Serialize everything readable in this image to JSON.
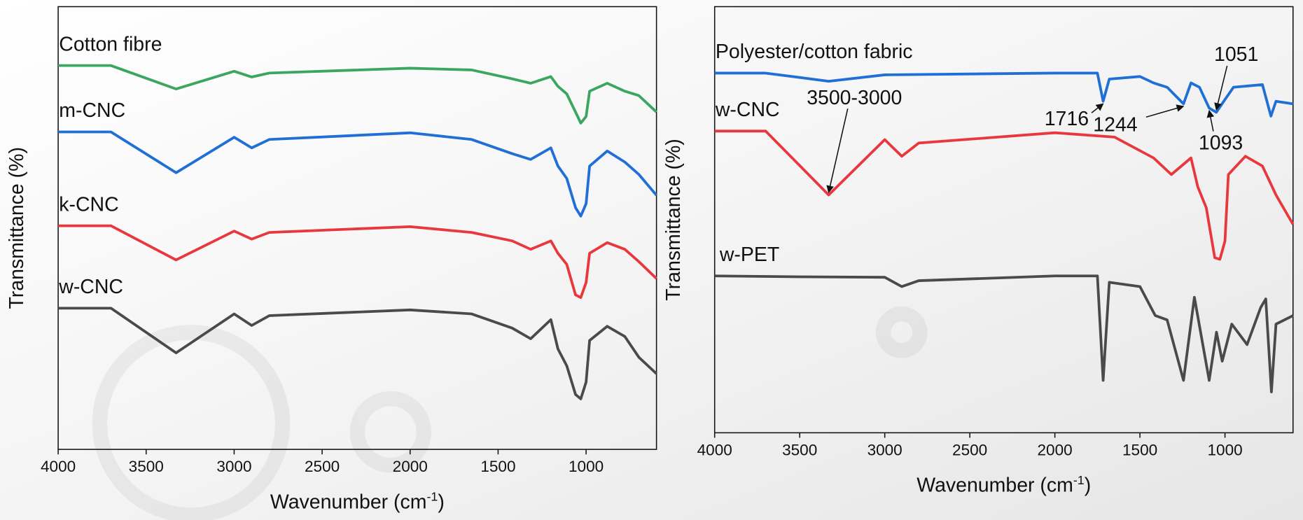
{
  "chart_data": [
    {
      "type": "line",
      "xlabel": {
        "text": "Wavenumber (cm",
        "sup": "-1",
        "end": ")"
      },
      "ylabel": "Transmittance (%)",
      "xlim": [
        4000,
        600
      ],
      "ylim": [
        0,
        100
      ],
      "xticks": [
        4000,
        3500,
        3000,
        2500,
        2000,
        1500,
        1000
      ],
      "series": [
        {
          "name": "Cotton fibre",
          "color": "#3aa660",
          "x": [
            4000,
            3700,
            3330,
            3000,
            2900,
            2800,
            2000,
            1650,
            1420,
            1315,
            1200,
            1160,
            1110,
            1060,
            1030,
            1000,
            980,
            880,
            780,
            700,
            600
          ],
          "values": [
            86.7,
            86.7,
            81.4,
            85.4,
            84.1,
            85.0,
            86.1,
            85.7,
            83.7,
            82.7,
            84.2,
            82.0,
            80.3,
            76.2,
            73.7,
            75.2,
            80.9,
            82.7,
            80.9,
            79.9,
            76.2
          ]
        },
        {
          "name": "m-CNC",
          "color": "#1f6fd6",
          "x": [
            4000,
            3700,
            3330,
            3000,
            2900,
            2800,
            2000,
            1650,
            1420,
            1315,
            1200,
            1160,
            1110,
            1060,
            1030,
            1000,
            980,
            880,
            780,
            700,
            600
          ],
          "values": [
            71.7,
            71.7,
            62.5,
            70.5,
            68.1,
            70.0,
            71.5,
            70.0,
            66.8,
            65.5,
            68.1,
            64.0,
            61.2,
            54.6,
            52.7,
            55.5,
            64.0,
            67.4,
            64.9,
            62.1,
            57.4
          ]
        },
        {
          "name": "k-CNC",
          "color": "#e8383d",
          "x": [
            4000,
            3700,
            3330,
            3000,
            2900,
            2800,
            2000,
            1650,
            1420,
            1315,
            1200,
            1160,
            1110,
            1060,
            1030,
            1000,
            980,
            880,
            780,
            700,
            600
          ],
          "values": [
            50.5,
            50.5,
            42.8,
            49.3,
            47.5,
            49.0,
            50.3,
            49.0,
            47.1,
            45.2,
            47.1,
            44.3,
            41.8,
            34.9,
            34.3,
            37.7,
            44.3,
            46.7,
            45.2,
            42.4,
            38.6
          ]
        },
        {
          "name": "w-CNC",
          "color": "#4a4a4a",
          "x": [
            4000,
            3700,
            3330,
            3000,
            2900,
            2800,
            2000,
            1650,
            1420,
            1315,
            1200,
            1160,
            1110,
            1060,
            1030,
            1000,
            980,
            880,
            780,
            700,
            600
          ],
          "values": [
            31.9,
            31.9,
            21.8,
            30.6,
            28.0,
            30.2,
            31.5,
            30.6,
            27.4,
            25.0,
            29.3,
            22.7,
            18.9,
            12.4,
            11.4,
            15.2,
            24.6,
            27.8,
            25.5,
            20.8,
            17.1
          ]
        }
      ]
    },
    {
      "type": "line",
      "xlabel": {
        "text": "Wavenumber (cm",
        "sup": "-1",
        "end": ")"
      },
      "ylabel": "Transmittance (%)",
      "xlim": [
        4000,
        600
      ],
      "ylim": [
        0,
        100
      ],
      "xticks": [
        4000,
        3500,
        3000,
        2500,
        2000,
        1500,
        1000
      ],
      "series": [
        {
          "name": "Polyester/cotton fabric",
          "color": "#1f6fd6",
          "x": [
            4000,
            3700,
            3330,
            3000,
            2000,
            1750,
            1716,
            1680,
            1500,
            1420,
            1340,
            1244,
            1200,
            1150,
            1093,
            1051,
            1000,
            950,
            780,
            730,
            700,
            600
          ],
          "values": [
            84.4,
            84.4,
            82.5,
            84.0,
            84.4,
            84.4,
            77.8,
            83.0,
            83.6,
            82.1,
            81.1,
            77.2,
            82.1,
            81.1,
            76.2,
            75.2,
            78.2,
            81.1,
            81.7,
            74.3,
            77.8,
            77.2
          ]
        },
        {
          "name": "w-CNC",
          "color": "#e8383d",
          "x": [
            4000,
            3700,
            3330,
            3000,
            2900,
            2800,
            2000,
            1650,
            1420,
            1315,
            1200,
            1160,
            1110,
            1060,
            1030,
            1000,
            980,
            880,
            780,
            700,
            600
          ],
          "values": [
            70.8,
            70.8,
            55.8,
            68.8,
            64.9,
            68.0,
            70.4,
            69.4,
            64.5,
            60.6,
            64.5,
            57.7,
            52.8,
            41.1,
            40.7,
            45.0,
            60.6,
            64.9,
            62.6,
            55.8,
            48.9
          ]
        },
        {
          "name": "w-PET",
          "color": "#4a4a4a",
          "x": [
            4000,
            3500,
            3000,
            2900,
            2800,
            2000,
            1750,
            1716,
            1680,
            1500,
            1410,
            1340,
            1244,
            1180,
            1093,
            1050,
            1016,
            960,
            870,
            790,
            760,
            727,
            700,
            600
          ],
          "values": [
            36.8,
            36.6,
            36.5,
            34.3,
            35.7,
            36.8,
            36.8,
            12.3,
            35.3,
            34.3,
            27.5,
            26.5,
            12.3,
            31.8,
            12.3,
            23.6,
            16.8,
            25.5,
            20.7,
            29.4,
            31.4,
            9.6,
            25.5,
            27.5
          ]
        }
      ],
      "annotations": [
        {
          "text": "3500-3000",
          "x": 3330
        },
        {
          "text": "1716",
          "x": 1716
        },
        {
          "text": "1244",
          "x": 1244
        },
        {
          "text": "1093",
          "x": 1093
        },
        {
          "text": "1051",
          "x": 1051
        }
      ]
    }
  ]
}
